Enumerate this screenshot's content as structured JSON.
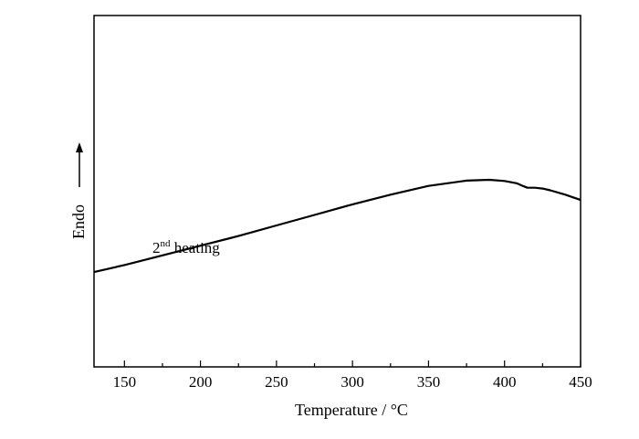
{
  "chart_data": {
    "type": "line",
    "title": "",
    "xlabel": "Temperature / °C",
    "ylabel": "Endo",
    "ylabel_arrow": "up",
    "xlim": [
      130,
      450
    ],
    "xticks": [
      150,
      200,
      250,
      300,
      350,
      400,
      450
    ],
    "x_minor_step": 25,
    "y_ticks_shown": false,
    "grid": false,
    "legend": "none",
    "annotations": [
      {
        "base": "2",
        "sup": "nd",
        "rest": " heating"
      }
    ],
    "series": [
      {
        "color": "#000000",
        "x": [
          130,
          150,
          175,
          200,
          225,
          250,
          275,
          300,
          325,
          350,
          375,
          390,
          400,
          408,
          412,
          415,
          420,
          425,
          430,
          440,
          450
        ],
        "y": [
          0.54,
          0.58,
          0.635,
          0.69,
          0.745,
          0.805,
          0.865,
          0.925,
          0.98,
          1.03,
          1.06,
          1.065,
          1.058,
          1.045,
          1.03,
          1.02,
          1.02,
          1.015,
          1.005,
          0.98,
          0.95
        ]
      }
    ]
  }
}
